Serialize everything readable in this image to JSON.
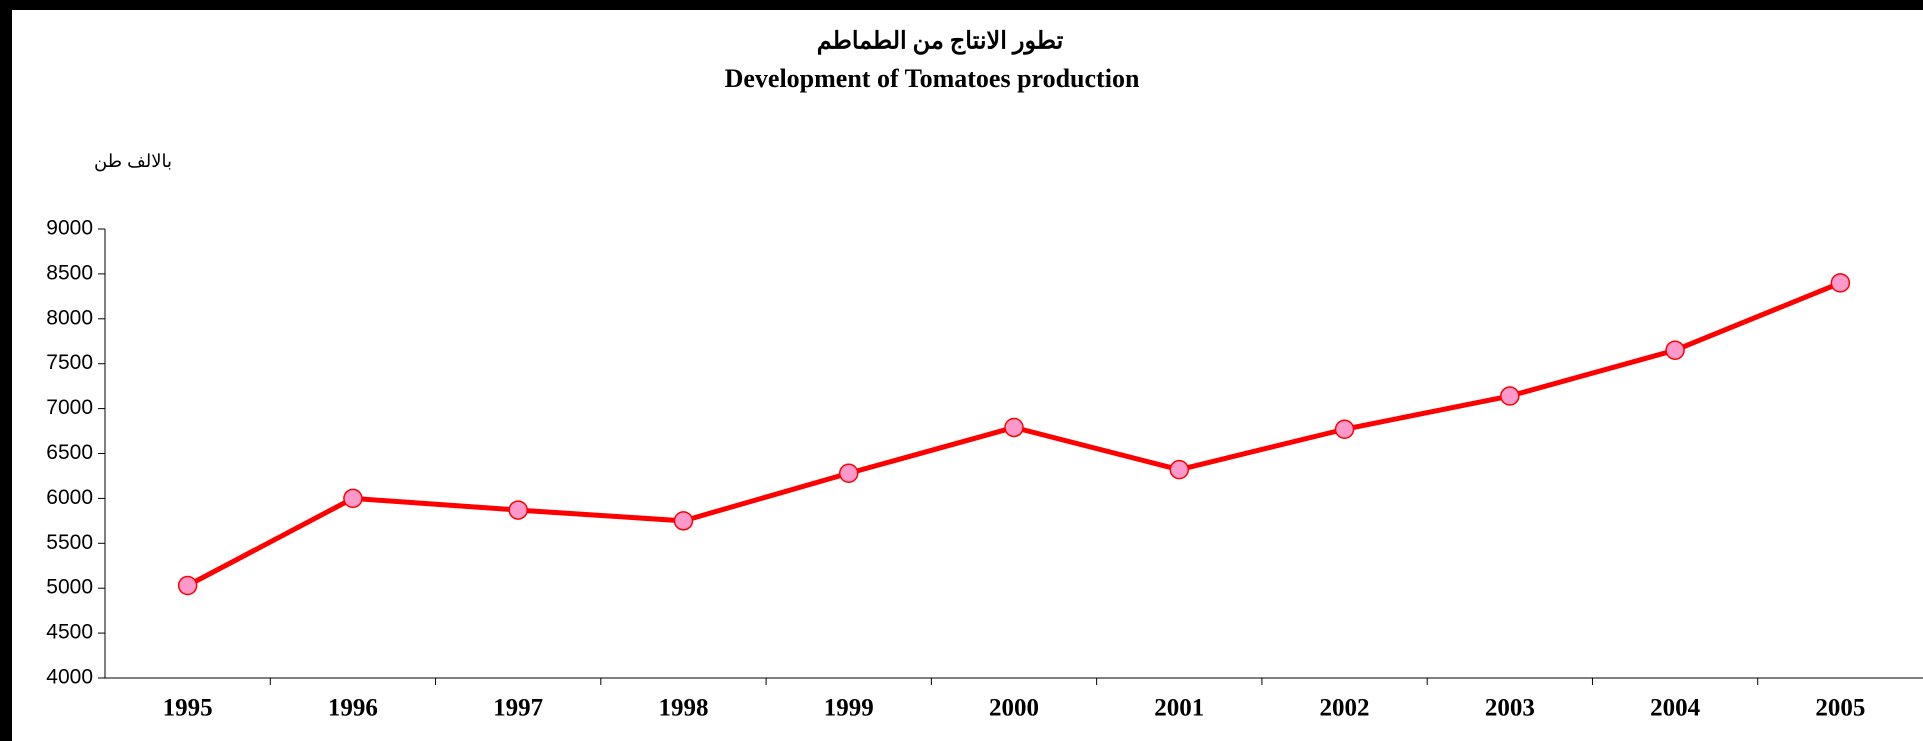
{
  "chart_data": {
    "type": "line",
    "title": "تطور الانتاج من الطماطم",
    "subtitle": "Development of Tomatoes production",
    "ylabel": "بالالف طن",
    "categories": [
      "1995",
      "1996",
      "1997",
      "1998",
      "1999",
      "2000",
      "2001",
      "2002",
      "2003",
      "2004",
      "2005"
    ],
    "series": [
      {
        "name": "Tomatoes production",
        "color": "#ff0000",
        "marker_color": "#ff99cc",
        "values": [
          5030,
          6000,
          5870,
          5750,
          6280,
          6790,
          6320,
          6770,
          7140,
          7650,
          8400
        ]
      }
    ],
    "ylim": [
      4000,
      9000
    ],
    "yticks": [
      4000,
      4500,
      5000,
      5500,
      6000,
      6500,
      7000,
      7500,
      8000,
      8500,
      9000
    ],
    "grid": false
  }
}
